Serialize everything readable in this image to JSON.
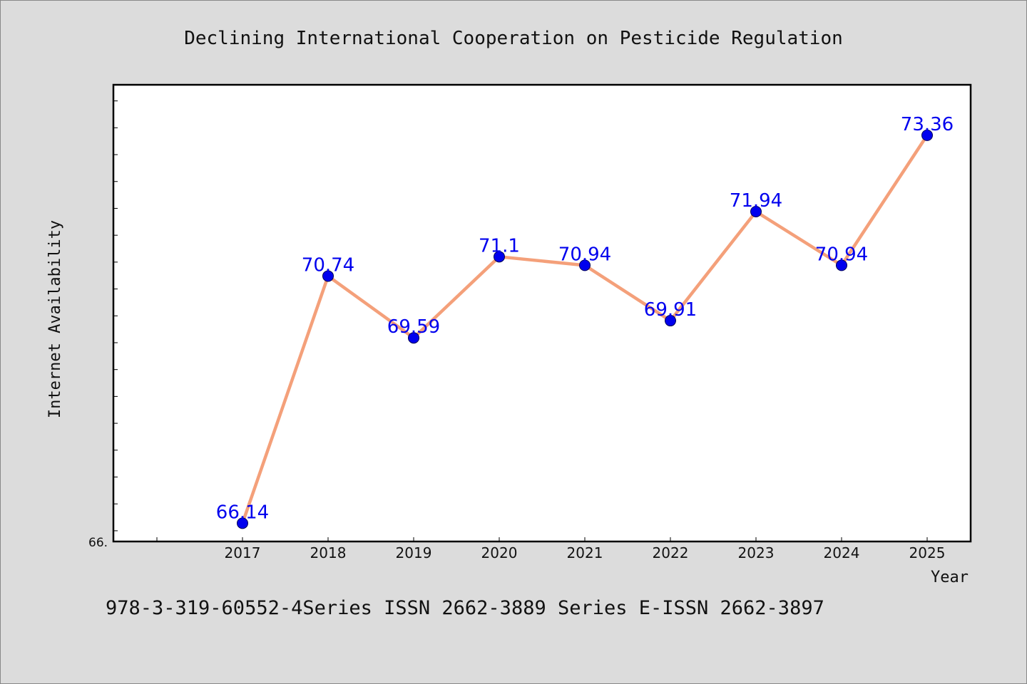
{
  "chart_data": {
    "type": "line",
    "title": "Declining International Cooperation on Pesticide Regulation",
    "xlabel": "Year",
    "ylabel": "Internet Availability",
    "categories": [
      "2017",
      "2018",
      "2019",
      "2020",
      "2021",
      "2022",
      "2023",
      "2024",
      "2025"
    ],
    "series": [
      {
        "values": [
          66.14,
          70.74,
          69.59,
          71.1,
          70.94,
          69.91,
          71.94,
          70.94,
          73.36
        ],
        "labels": [
          "66.14",
          "70.74",
          "69.59",
          "71.1",
          "70.94",
          "69.91",
          "71.94",
          "70.94",
          "73.36"
        ]
      }
    ],
    "ylim": [
      65.8,
      74.3
    ],
    "ytick_labels": [
      {
        "value": 65.8,
        "label": "66."
      }
    ],
    "grid": false,
    "colors": {
      "line": "#f4a07a",
      "marker": "#0000ee",
      "data_label": "#0000ee",
      "plot_background": "#ffffff",
      "page_background": "#dcdcdc"
    }
  },
  "footer": {
    "text": "978-3-319-60552-4Series ISSN 2662-3889 Series E-ISSN 2662-3897"
  }
}
